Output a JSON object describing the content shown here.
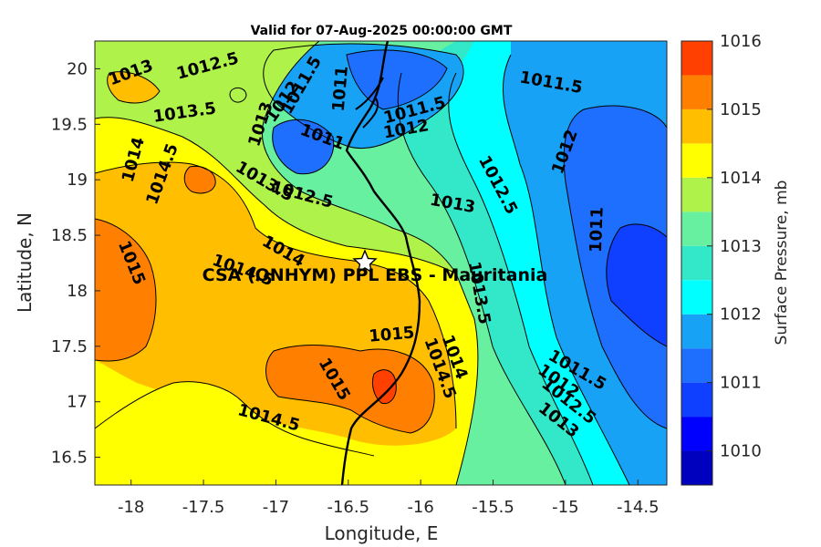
{
  "title": "Valid for 07-Aug-2025 00:00:00 GMT",
  "site_label": "CSA (ONHYM) PPL EBS  - Mauritania",
  "xlabel": "Longitude, E",
  "ylabel": "Latitude, N",
  "colorbar": {
    "label": "Surface Pressure, mb",
    "ticks": [
      "1010",
      "1011",
      "1012",
      "1013",
      "1014",
      "1015",
      "1016"
    ],
    "levels": [
      1009.5,
      1010,
      1010.5,
      1011,
      1011.5,
      1012,
      1012.5,
      1013,
      1013.5,
      1014,
      1014.5,
      1015,
      1015.5,
      1016
    ],
    "colors": [
      "#0000bf",
      "#0000ff",
      "#0f3fff",
      "#1f6fff",
      "#17a2f5",
      "#00ffff",
      "#33e8c8",
      "#66f0a0",
      "#aef24a",
      "#ffff00",
      "#ffbf00",
      "#ff8000",
      "#ff4000"
    ]
  },
  "chart_data": {
    "type": "contour-map",
    "quantity": "Surface Pressure",
    "unit": "mb",
    "xlim": [
      -18.25,
      -14.3
    ],
    "ylim": [
      16.25,
      20.25
    ],
    "xticks": [
      "-18",
      "-17.5",
      "-17",
      "-16.5",
      "-16",
      "-15.5",
      "-15",
      "-14.5"
    ],
    "yticks": [
      "16.5",
      "17",
      "17.5",
      "18",
      "18.5",
      "19",
      "19.5",
      "20"
    ],
    "site": {
      "lon": -16.35,
      "lat": 18.28
    },
    "contour_labels": [
      {
        "text": "1013",
        "lon": -18.0,
        "lat": 19.96,
        "rot": -20
      },
      {
        "text": "1012.5",
        "lon": -17.47,
        "lat": 20.02,
        "rot": -15
      },
      {
        "text": "1013.5",
        "lon": -17.63,
        "lat": 19.6,
        "rot": -8
      },
      {
        "text": "1013",
        "lon": -17.1,
        "lat": 19.5,
        "rot": -72
      },
      {
        "text": "1012",
        "lon": -16.95,
        "lat": 19.7,
        "rot": -55
      },
      {
        "text": "1011.5",
        "lon": -16.82,
        "lat": 19.85,
        "rot": -60
      },
      {
        "text": "1011",
        "lon": -16.55,
        "lat": 19.82,
        "rot": -85
      },
      {
        "text": "1011",
        "lon": -16.68,
        "lat": 19.38,
        "rot": 20
      },
      {
        "text": "1011.5",
        "lon": -16.04,
        "lat": 19.62,
        "rot": -15
      },
      {
        "text": "1012",
        "lon": -16.1,
        "lat": 19.45,
        "rot": -10
      },
      {
        "text": "1014",
        "lon": -17.98,
        "lat": 19.18,
        "rot": -75
      },
      {
        "text": "1014.5",
        "lon": -17.78,
        "lat": 19.05,
        "rot": -70
      },
      {
        "text": "1013.5",
        "lon": -17.08,
        "lat": 18.98,
        "rot": 30
      },
      {
        "text": "1012.5",
        "lon": -16.82,
        "lat": 18.86,
        "rot": 15
      },
      {
        "text": "1013",
        "lon": -15.78,
        "lat": 18.78,
        "rot": 10
      },
      {
        "text": "1012.5",
        "lon": -15.47,
        "lat": 18.95,
        "rot": 62
      },
      {
        "text": "1012",
        "lon": -15.0,
        "lat": 19.25,
        "rot": -70
      },
      {
        "text": "1011.5",
        "lon": -15.1,
        "lat": 19.87,
        "rot": 10
      },
      {
        "text": "1011",
        "lon": -14.78,
        "lat": 18.55,
        "rot": -88
      },
      {
        "text": "1015",
        "lon": -18.0,
        "lat": 18.25,
        "rot": 68
      },
      {
        "text": "1014",
        "lon": -16.95,
        "lat": 18.35,
        "rot": 30
      },
      {
        "text": "1014.5",
        "lon": -17.23,
        "lat": 18.18,
        "rot": 20
      },
      {
        "text": "1013.5",
        "lon": -15.6,
        "lat": 17.98,
        "rot": 80
      },
      {
        "text": "1015",
        "lon": -16.2,
        "lat": 17.6,
        "rot": -5
      },
      {
        "text": "1014",
        "lon": -15.77,
        "lat": 17.4,
        "rot": 70
      },
      {
        "text": "1014.5",
        "lon": -15.87,
        "lat": 17.3,
        "rot": 70
      },
      {
        "text": "1015",
        "lon": -16.6,
        "lat": 17.2,
        "rot": 60
      },
      {
        "text": "1011.5",
        "lon": -14.92,
        "lat": 17.28,
        "rot": 30
      },
      {
        "text": "1012",
        "lon": -15.05,
        "lat": 17.18,
        "rot": 35
      },
      {
        "text": "1012.5",
        "lon": -14.98,
        "lat": 17.0,
        "rot": 38
      },
      {
        "text": "1013",
        "lon": -15.05,
        "lat": 16.83,
        "rot": 38
      },
      {
        "text": "1014.5",
        "lon": -17.05,
        "lat": 16.85,
        "rot": 15
      }
    ]
  }
}
